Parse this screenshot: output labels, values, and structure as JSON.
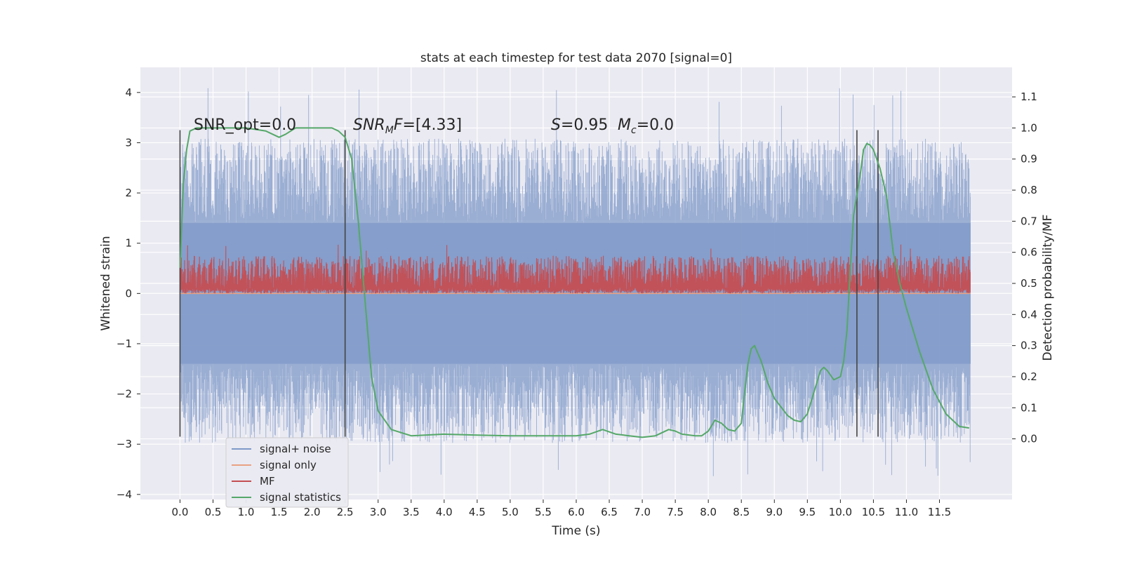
{
  "chart_data": {
    "type": "line",
    "title": "stats at each timestep for test data 2070 [signal=0]",
    "xlabel": "Time (s)",
    "ylabel_left": "Whitened strain",
    "ylabel_right": "Detection probability/MF",
    "xlim": [
      -0.6,
      12.6
    ],
    "ylim_left": [
      -4.1,
      4.5
    ],
    "ylim_right": [
      -0.195,
      1.195
    ],
    "x_ticks": [
      "0.0",
      "0.5",
      "1.0",
      "1.5",
      "2.0",
      "2.5",
      "3.0",
      "3.5",
      "4.0",
      "4.5",
      "5.0",
      "5.5",
      "6.0",
      "6.5",
      "7.0",
      "7.5",
      "8.0",
      "8.5",
      "9.0",
      "9.5",
      "10.0",
      "10.5",
      "11.0",
      "11.5"
    ],
    "y_ticks_left": [
      "4",
      "3",
      "2",
      "1",
      "0",
      "−1",
      "−2",
      "−3",
      "−4"
    ],
    "y_ticks_right": [
      "1.1",
      "1.0",
      "0.9",
      "0.8",
      "0.7",
      "0.6",
      "0.5",
      "0.4",
      "0.3",
      "0.2",
      "0.1",
      "0.0"
    ],
    "grid": true,
    "legend_position": "lower-left",
    "annotations": [
      {
        "text": "SNR_opt=0.0",
        "x": 0.2,
        "y": 3.33
      },
      {
        "text": "SNR_MF=[4.33]",
        "x": 2.6,
        "y": 3.33
      },
      {
        "text": "S=0.95",
        "x": 5.6,
        "y": 3.33
      },
      {
        "text": "M_c=0.0",
        "x": 6.6,
        "y": 3.33
      }
    ],
    "vertical_markers": [
      {
        "x": 0.0,
        "y_range": [
          -2.85,
          3.25
        ]
      },
      {
        "x": 2.5,
        "y_range": [
          -2.85,
          3.25
        ]
      },
      {
        "x": 10.25,
        "y_range": [
          -2.85,
          3.25
        ]
      },
      {
        "x": 10.57,
        "y_range": [
          -2.85,
          3.25
        ]
      }
    ],
    "series": [
      {
        "name": "signal+ noise",
        "axis": "left",
        "color": "#7f99c8",
        "style": "noise_band",
        "x_range": [
          0.0,
          11.97
        ],
        "core_range": [
          -1.4,
          1.4
        ],
        "typical_peak_range": [
          -2.9,
          3.0
        ],
        "max": 4.1,
        "min": -3.7
      },
      {
        "name": "signal only",
        "axis": "left",
        "color": "#e9a182",
        "x": [
          0.0,
          11.97
        ],
        "values": [
          0.0,
          0.0
        ]
      },
      {
        "name": "MF",
        "axis": "left",
        "color": "#c44e52",
        "style": "noise_band",
        "x_range": [
          0.0,
          11.97
        ],
        "baseline": 0.1,
        "typical_top_range": [
          0.3,
          0.75
        ],
        "max": 1.0
      },
      {
        "name": "signal statistics",
        "axis": "right",
        "color": "#55a868",
        "x": [
          0.0,
          0.05,
          0.1,
          0.15,
          0.25,
          0.5,
          1.0,
          1.3,
          1.5,
          1.6,
          1.75,
          2.0,
          2.3,
          2.4,
          2.5,
          2.6,
          2.7,
          2.8,
          2.9,
          3.0,
          3.2,
          3.5,
          4.0,
          4.5,
          5.0,
          5.5,
          6.0,
          6.2,
          6.4,
          6.6,
          6.8,
          7.0,
          7.2,
          7.4,
          7.5,
          7.6,
          7.8,
          7.9,
          8.0,
          8.1,
          8.2,
          8.3,
          8.4,
          8.5,
          8.55,
          8.6,
          8.65,
          8.7,
          8.8,
          8.9,
          9.0,
          9.2,
          9.3,
          9.4,
          9.5,
          9.6,
          9.7,
          9.75,
          9.8,
          9.9,
          10.0,
          10.05,
          10.1,
          10.15,
          10.2,
          10.3,
          10.35,
          10.4,
          10.45,
          10.5,
          10.6,
          10.7,
          10.8,
          10.9,
          11.0,
          11.2,
          11.4,
          11.6,
          11.8,
          11.95
        ],
        "values": [
          0.55,
          0.82,
          0.93,
          0.99,
          1.0,
          1.0,
          1.0,
          0.99,
          0.97,
          0.98,
          1.0,
          1.0,
          1.0,
          0.99,
          0.97,
          0.9,
          0.7,
          0.45,
          0.2,
          0.09,
          0.03,
          0.01,
          0.015,
          0.012,
          0.01,
          0.01,
          0.01,
          0.015,
          0.03,
          0.015,
          0.01,
          0.005,
          0.01,
          0.03,
          0.025,
          0.015,
          0.01,
          0.01,
          0.025,
          0.06,
          0.05,
          0.03,
          0.025,
          0.05,
          0.15,
          0.24,
          0.29,
          0.3,
          0.25,
          0.18,
          0.13,
          0.075,
          0.06,
          0.055,
          0.08,
          0.15,
          0.22,
          0.23,
          0.22,
          0.19,
          0.2,
          0.25,
          0.35,
          0.55,
          0.72,
          0.85,
          0.93,
          0.95,
          0.945,
          0.93,
          0.87,
          0.78,
          0.6,
          0.5,
          0.42,
          0.28,
          0.16,
          0.08,
          0.04,
          0.035
        ]
      }
    ]
  }
}
